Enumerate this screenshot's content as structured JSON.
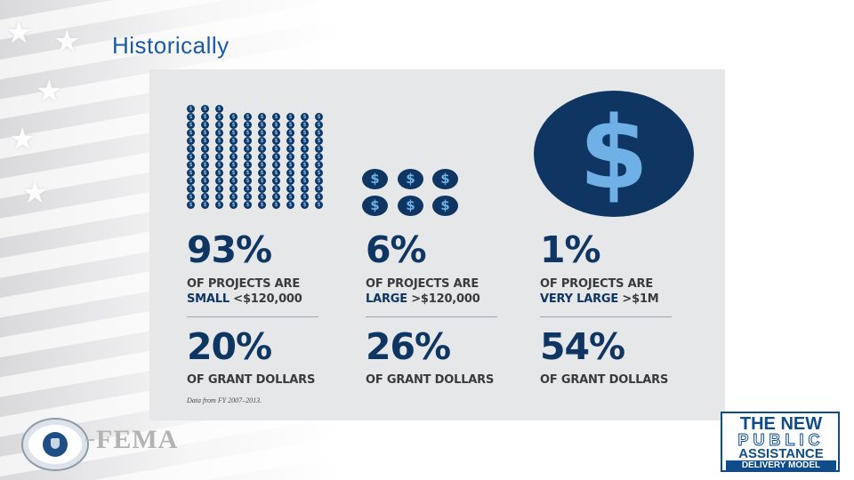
{
  "slide": {
    "title": "Historically"
  },
  "infographic": {
    "icon_symbol": "$",
    "stats_projects": [
      {
        "percent": "93%",
        "line1": "OF PROJECTS ARE",
        "line2_prefix": "SMALL",
        "line2_value": " <$120,000"
      },
      {
        "percent": "6%",
        "line1": "OF PROJECTS ARE",
        "line2_prefix": "LARGE",
        "line2_value": " >$120,000"
      },
      {
        "percent": "1%",
        "line1": "OF PROJECTS ARE",
        "line2_prefix": "VERY LARGE",
        "line2_value": " >$1M"
      }
    ],
    "stats_dollars": [
      {
        "percent": "20%",
        "label": "OF GRANT DOLLARS"
      },
      {
        "percent": "26%",
        "label": "OF GRANT DOLLARS"
      },
      {
        "percent": "54%",
        "label": "OF GRANT DOLLARS"
      }
    ],
    "footnote": "Data from FY 2007–2013.",
    "colors": {
      "navy": "#0f3563",
      "coin_symbol": "#6fb1e6",
      "panel_bg": "#e6e7e8"
    }
  },
  "logos": {
    "dhs_seal": "dhs-seal-icon",
    "fema_text": "FEMA",
    "pa_line1": "THE NEW",
    "pa_line2": "PUBLIC",
    "pa_line3": "ASSISTANCE",
    "pa_line4": "DELIVERY MODEL"
  }
}
